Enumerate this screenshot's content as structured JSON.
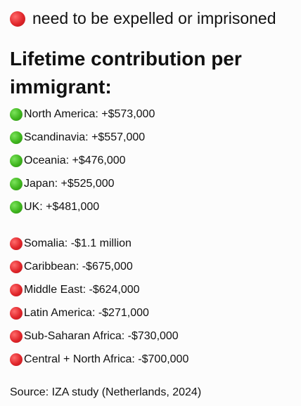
{
  "header": {
    "text": "need to be expelled or imprisoned",
    "icon": "red-circle-icon",
    "icon_color": "#e0262b"
  },
  "title": "Lifetime contribution per immigrant:",
  "positive": {
    "icon": "green-circle-icon",
    "icon_color": "#3fb51e",
    "items": [
      {
        "text": "North America: +$573,000"
      },
      {
        "text": "Scandinavia: +$557,000"
      },
      {
        "text": "Oceania: +$476,000"
      },
      {
        "text": "Japan: +$525,000"
      },
      {
        "text": "UK: +$481,000"
      }
    ]
  },
  "negative": {
    "icon": "red-circle-icon",
    "icon_color": "#e0262b",
    "items": [
      {
        "text": "Somalia: -$1.1 million"
      },
      {
        "text": "Caribbean: -$675,000"
      },
      {
        "text": "Middle East: -$624,000"
      },
      {
        "text": "Latin America: -$271,000"
      },
      {
        "text": "Sub-Saharan Africa: -$730,000"
      },
      {
        "text": "Central + North Africa: -$700,000"
      }
    ]
  },
  "source": "Source: IZA study (Netherlands, 2024)"
}
